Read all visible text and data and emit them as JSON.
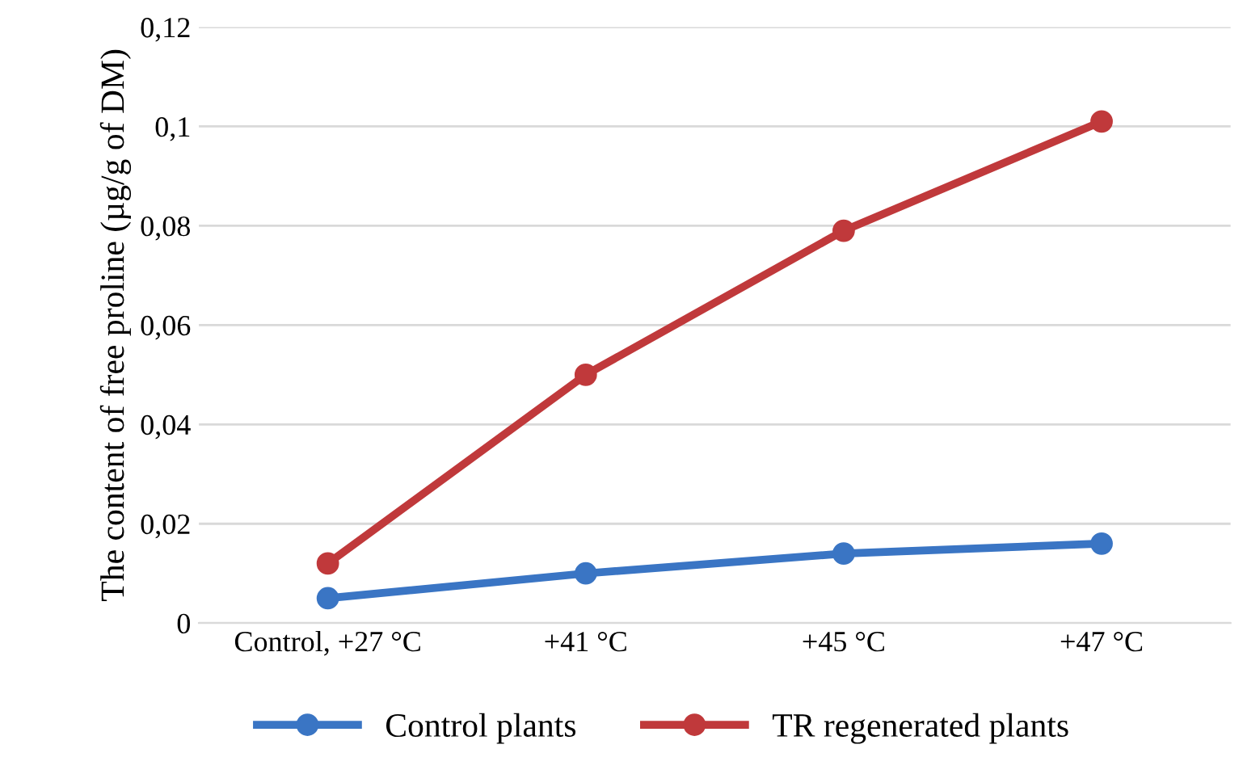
{
  "chart_data": {
    "type": "line",
    "ylabel": "The content of free proline (µg/g of DM)",
    "categories": [
      "Control, +27 °C",
      "+41 °C",
      "+45 °C",
      "+47 °C"
    ],
    "series": [
      {
        "name": "Control plants",
        "color": "#3a75c4",
        "values": [
          0.005,
          0.01,
          0.014,
          0.016
        ]
      },
      {
        "name": "TR regenerated plants",
        "color": "#c0393b",
        "values": [
          0.012,
          0.05,
          0.079,
          0.101
        ]
      }
    ],
    "ylim": [
      0,
      0.12
    ],
    "yticks": [
      0,
      {
        "value": 0.02,
        "label": "0,02"
      },
      {
        "value": 0.04,
        "label": "0,04"
      },
      {
        "value": 0.06,
        "label": "0,06"
      },
      {
        "value": 0.08,
        "label": "0,08"
      },
      {
        "value": 0.1,
        "label": "0,1"
      },
      {
        "value": 0.12,
        "label": "0,12"
      }
    ],
    "grid": "y",
    "legend": "bottom",
    "marker": "circle",
    "line_style": "solid"
  }
}
